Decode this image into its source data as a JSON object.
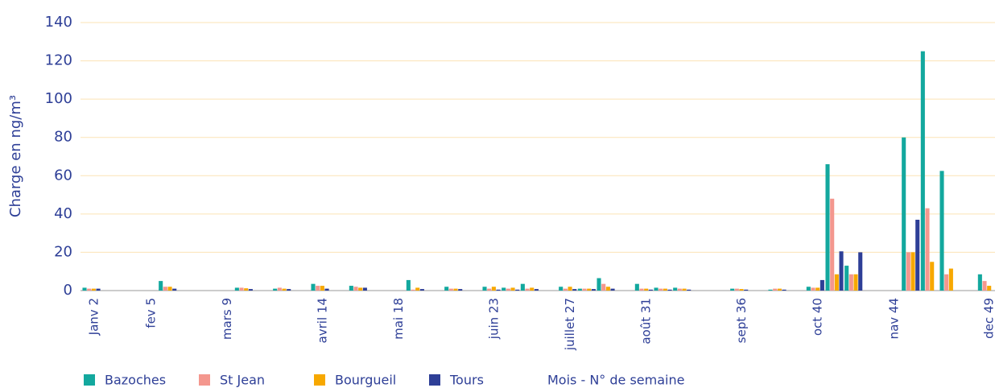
{
  "chart_data": {
    "type": "bar",
    "y_label": "Charge en ng/m³",
    "x_label": "Mois - N° de semaine",
    "categories": [
      "Janv 2",
      null,
      null,
      "fev 5",
      null,
      null,
      null,
      "mars 9",
      null,
      null,
      null,
      null,
      "avril 14",
      null,
      null,
      null,
      "mai 18",
      null,
      null,
      null,
      null,
      "juin 23",
      null,
      null,
      null,
      "juillet 27",
      null,
      null,
      null,
      "août 31",
      null,
      null,
      null,
      null,
      "sept 36",
      null,
      null,
      null,
      "oct 40",
      null,
      null,
      null,
      "nav 44",
      null,
      null,
      null,
      null,
      "dec 49"
    ],
    "series": [
      {
        "name": "Bazoches",
        "color": "#13a89e",
        "values": [
          1.5,
          null,
          null,
          null,
          5,
          null,
          null,
          null,
          1.5,
          null,
          1,
          null,
          3.5,
          null,
          2.5,
          null,
          null,
          5.5,
          null,
          2,
          null,
          2,
          1.5,
          3.5,
          null,
          2,
          1,
          6.5,
          null,
          3.5,
          1.5,
          1.5,
          null,
          null,
          1,
          null,
          0.5,
          null,
          2,
          66,
          13,
          null,
          null,
          80,
          125,
          62.5,
          null,
          8.5
        ]
      },
      {
        "name": "St Jean",
        "color": "#f4978e",
        "values": [
          1,
          null,
          null,
          null,
          2,
          null,
          null,
          null,
          1.5,
          null,
          1.5,
          null,
          2.5,
          null,
          2,
          null,
          null,
          0.5,
          null,
          1,
          null,
          1,
          1,
          1,
          null,
          1,
          1,
          3.5,
          null,
          1,
          1,
          1,
          null,
          null,
          1,
          null,
          1,
          null,
          1.5,
          48,
          8.5,
          null,
          null,
          20,
          43,
          8.5,
          null,
          5
        ]
      },
      {
        "name": "Bourgueil",
        "color": "#f7a800",
        "values": [
          1,
          null,
          null,
          null,
          2,
          null,
          null,
          null,
          1.2,
          null,
          1,
          null,
          2.5,
          null,
          1.5,
          null,
          null,
          1.5,
          null,
          1,
          null,
          2,
          1.5,
          1.5,
          null,
          2,
          1,
          2,
          null,
          1,
          1,
          1,
          null,
          null,
          0.8,
          null,
          1,
          null,
          1.5,
          8.5,
          8.5,
          null,
          null,
          20,
          15,
          11.5,
          null,
          2.5
        ]
      },
      {
        "name": "Tours",
        "color": "#2e3f97",
        "values": [
          1,
          null,
          null,
          null,
          1,
          null,
          null,
          null,
          0.8,
          null,
          0.8,
          null,
          1,
          null,
          1.5,
          null,
          null,
          0.8,
          null,
          0.8,
          null,
          0.5,
          0.5,
          0.8,
          null,
          0.8,
          0.8,
          1,
          null,
          0.5,
          0.5,
          0.5,
          null,
          null,
          0.5,
          null,
          0.5,
          null,
          5.5,
          20.5,
          20,
          null,
          null,
          37,
          null,
          null,
          null,
          null
        ]
      }
    ],
    "ylim": [
      0,
      140
    ],
    "yticks": [
      0,
      20,
      40,
      60,
      80,
      100,
      120,
      140
    ],
    "grid": true
  }
}
